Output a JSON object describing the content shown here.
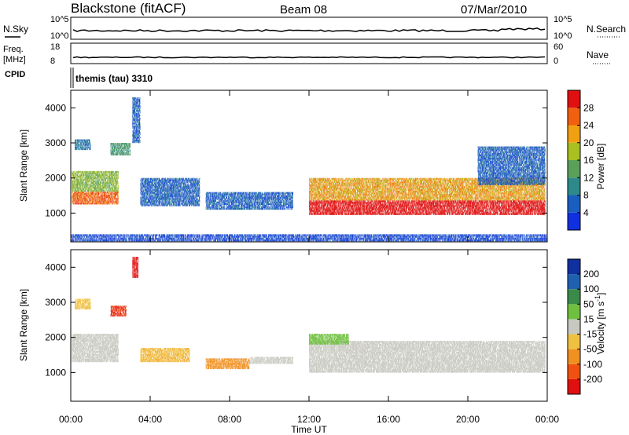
{
  "header": {
    "station": "Blackstone (fitACF)",
    "beam": "Beam 08",
    "date": "07/Mar/2010"
  },
  "strip_noise": {
    "left_label": "N.Sky",
    "right_label": "N.Search",
    "left_ticks": [
      "10^5",
      "10^0"
    ],
    "right_ticks": [
      "10^5",
      "10^0"
    ]
  },
  "strip_freq": {
    "left_label_1": "Freq.",
    "left_label_2": "[MHz]",
    "right_label": "Nave",
    "left_ticks": [
      "18",
      "8"
    ],
    "right_ticks": [
      "60",
      "0"
    ]
  },
  "cpid": {
    "label": "CPID",
    "value": "themis (tau) 3310"
  },
  "x_axis": {
    "label": "Time UT",
    "ticks": [
      "00:00",
      "04:00",
      "08:00",
      "12:00",
      "16:00",
      "20:00",
      "00:00"
    ]
  },
  "colors": {
    "power_scale": [
      "#1030e0",
      "#1a5fc0",
      "#2e8a8a",
      "#5aa05a",
      "#a8c020",
      "#f0a010",
      "#f06010",
      "#e01010"
    ],
    "velocity_scale": [
      "#e01010",
      "#f05010",
      "#f09020",
      "#f0c040",
      "#c8c8c0",
      "#70c040",
      "#3a8a4a",
      "#2060b0",
      "#1030a0"
    ],
    "ground_scatter": "#c0c0b8"
  },
  "chart_data": [
    {
      "type": "heatmap",
      "title": "",
      "xlabel": "Time UT",
      "ylabel": "Slant Range [km]",
      "xlim": [
        "00:00",
        "24:00"
      ],
      "ylim": [
        180,
        4500
      ],
      "y_ticks": [
        "1000",
        "2000",
        "3000",
        "4000"
      ],
      "colorbar": {
        "label": "Power [dB]",
        "ticks": [
          "4",
          "8",
          "12",
          "16",
          "20",
          "24",
          "28"
        ],
        "range": [
          0,
          32
        ]
      },
      "regions": [
        {
          "t_start": 0.05,
          "t_end": 2.4,
          "r_low": 1250,
          "r_high": 2200,
          "level": 16
        },
        {
          "t_start": 0.2,
          "t_end": 1.0,
          "r_low": 2800,
          "r_high": 3100,
          "level": 8
        },
        {
          "t_start": 2.0,
          "t_end": 3.0,
          "r_low": 2650,
          "r_high": 3000,
          "level": 12
        },
        {
          "t_start": 3.1,
          "t_end": 3.5,
          "r_low": 3000,
          "r_high": 4300,
          "level": 6
        },
        {
          "t_start": 3.5,
          "t_end": 6.5,
          "r_low": 1200,
          "r_high": 2000,
          "level": 6
        },
        {
          "t_start": 6.8,
          "t_end": 11.2,
          "r_low": 1100,
          "r_high": 1600,
          "level": 6
        },
        {
          "t_start": 12.0,
          "t_end": 23.9,
          "r_low": 950,
          "r_high": 2000,
          "level": 22
        },
        {
          "t_start": 20.5,
          "t_end": 23.9,
          "r_low": 1800,
          "r_high": 2900,
          "level": 6
        },
        {
          "t_start": 0.0,
          "t_end": 24.0,
          "r_low": 200,
          "r_high": 400,
          "level": 4
        }
      ]
    },
    {
      "type": "heatmap",
      "title": "",
      "xlabel": "Time UT",
      "ylabel": "Slant Range [km]",
      "xlim": [
        "00:00",
        "24:00"
      ],
      "ylim": [
        180,
        4500
      ],
      "y_ticks": [
        "1000",
        "2000",
        "3000",
        "4000"
      ],
      "colorbar": {
        "label": "Velocity [m s^-1]",
        "ticks": [
          "200",
          "100",
          "50",
          "15",
          "-15",
          "-50",
          "-100",
          "-200"
        ],
        "range": [
          -250,
          250
        ]
      },
      "regions": [
        {
          "t_start": 0.05,
          "t_end": 2.4,
          "r_low": 1300,
          "r_high": 2100,
          "vel": 0
        },
        {
          "t_start": 0.2,
          "t_end": 1.0,
          "r_low": 2800,
          "r_high": 3100,
          "vel": -30
        },
        {
          "t_start": 2.0,
          "t_end": 2.8,
          "r_low": 2600,
          "r_high": 2900,
          "vel": -200
        },
        {
          "t_start": 3.1,
          "t_end": 3.4,
          "r_low": 3700,
          "r_high": 4300,
          "vel": -220
        },
        {
          "t_start": 3.5,
          "t_end": 6.0,
          "r_low": 1300,
          "r_high": 1700,
          "vel": -40
        },
        {
          "t_start": 6.8,
          "t_end": 9.0,
          "r_low": 1100,
          "r_high": 1400,
          "vel": -80
        },
        {
          "t_start": 9.0,
          "t_end": 11.2,
          "r_low": 1250,
          "r_high": 1450,
          "vel": 0
        },
        {
          "t_start": 12.0,
          "t_end": 23.9,
          "r_low": 1000,
          "r_high": 1900,
          "vel": 0
        },
        {
          "t_start": 12.0,
          "t_end": 14.0,
          "r_low": 1800,
          "r_high": 2100,
          "vel": 30
        }
      ]
    }
  ]
}
